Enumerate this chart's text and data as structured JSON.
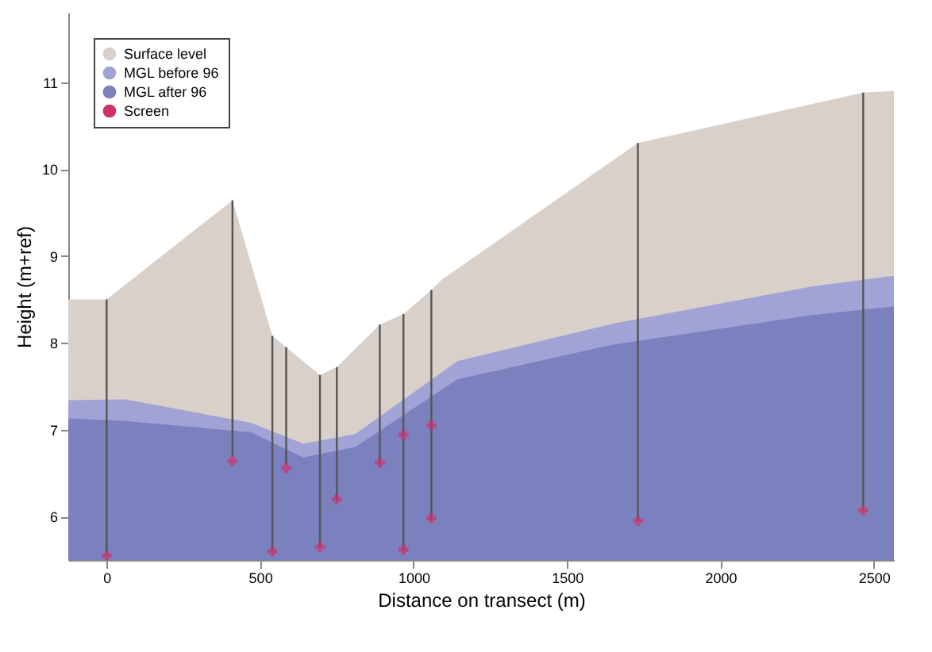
{
  "chart_data": {
    "type": "area",
    "xlabel": "Distance on transect (m)",
    "ylabel": "Height (m+ref)",
    "xlim": [
      -125,
      2565
    ],
    "xticks": [
      0,
      500,
      1000,
      1500,
      2000,
      2500
    ],
    "ylim": [
      5.5,
      11.8
    ],
    "yticks": [
      6,
      7,
      8,
      9,
      10,
      11
    ],
    "grid": false,
    "legend": "top left",
    "series": [
      {
        "name": "Surface level",
        "color": "#d9d0ca",
        "x": [
          -125,
          0,
          410,
          540,
          585,
          695,
          750,
          890,
          967,
          1058,
          1093,
          1731,
          2465,
          2565
        ],
        "values": [
          8.5,
          8.5,
          9.64,
          8.08,
          7.95,
          7.63,
          7.72,
          8.21,
          8.33,
          8.61,
          8.73,
          10.3,
          10.88,
          10.9
        ]
      },
      {
        "name": "MGL before 96",
        "color": "#a1a3d6",
        "x": [
          -125,
          60,
          470,
          640,
          810,
          1143,
          1650,
          2300,
          2565
        ],
        "values": [
          7.34,
          7.35,
          7.08,
          6.84,
          6.95,
          7.79,
          8.22,
          8.65,
          8.77
        ]
      },
      {
        "name": "MGL after 96",
        "color": "#7b80be",
        "x": [
          -125,
          60,
          470,
          640,
          810,
          1143,
          1650,
          2300,
          2565
        ],
        "values": [
          7.13,
          7.1,
          6.97,
          6.68,
          6.8,
          7.58,
          7.98,
          8.32,
          8.42
        ]
      },
      {
        "type": "line",
        "color": "#555555",
        "x": [
          0,
          0
        ],
        "values": [
          8.5,
          5.55
        ]
      },
      {
        "type": "line",
        "color": "#555555",
        "x": [
          410,
          410
        ],
        "values": [
          9.64,
          6.7
        ]
      },
      {
        "type": "line",
        "color": "#555555",
        "x": [
          540,
          540
        ],
        "values": [
          8.08,
          5.6
        ]
      },
      {
        "type": "line",
        "color": "#555555",
        "x": [
          585,
          585
        ],
        "values": [
          7.95,
          6.6
        ]
      },
      {
        "type": "line",
        "color": "#555555",
        "x": [
          695,
          695
        ],
        "values": [
          7.63,
          5.65
        ]
      },
      {
        "type": "line",
        "color": "#555555",
        "x": [
          750,
          750
        ],
        "values": [
          7.72,
          6.17
        ]
      },
      {
        "type": "line",
        "color": "#555555",
        "x": [
          890,
          890
        ],
        "values": [
          8.21,
          6.6
        ]
      },
      {
        "type": "line",
        "color": "#555555",
        "x": [
          967,
          967
        ],
        "values": [
          8.33,
          5.6
        ]
      },
      {
        "type": "line",
        "color": "#555555",
        "x": [
          1058,
          1058
        ],
        "values": [
          8.61,
          5.95
        ]
      },
      {
        "type": "line",
        "color": "#555555",
        "x": [
          1731,
          1731
        ],
        "values": [
          10.3,
          5.95
        ]
      },
      {
        "type": "line",
        "color": "#555555",
        "x": [
          2465,
          2465
        ],
        "values": [
          10.88,
          6.07
        ]
      },
      {
        "name": "Screen",
        "type": "scatter",
        "marker": "cross",
        "color": "#d0306a",
        "x": [
          0,
          410,
          540,
          585,
          695,
          750,
          890,
          967,
          967,
          1058,
          1058,
          1731,
          2465
        ],
        "values": [
          5.55,
          6.64,
          5.6,
          6.56,
          5.65,
          6.2,
          6.62,
          5.62,
          6.94,
          5.98,
          7.05,
          5.95,
          6.07
        ]
      }
    ]
  }
}
